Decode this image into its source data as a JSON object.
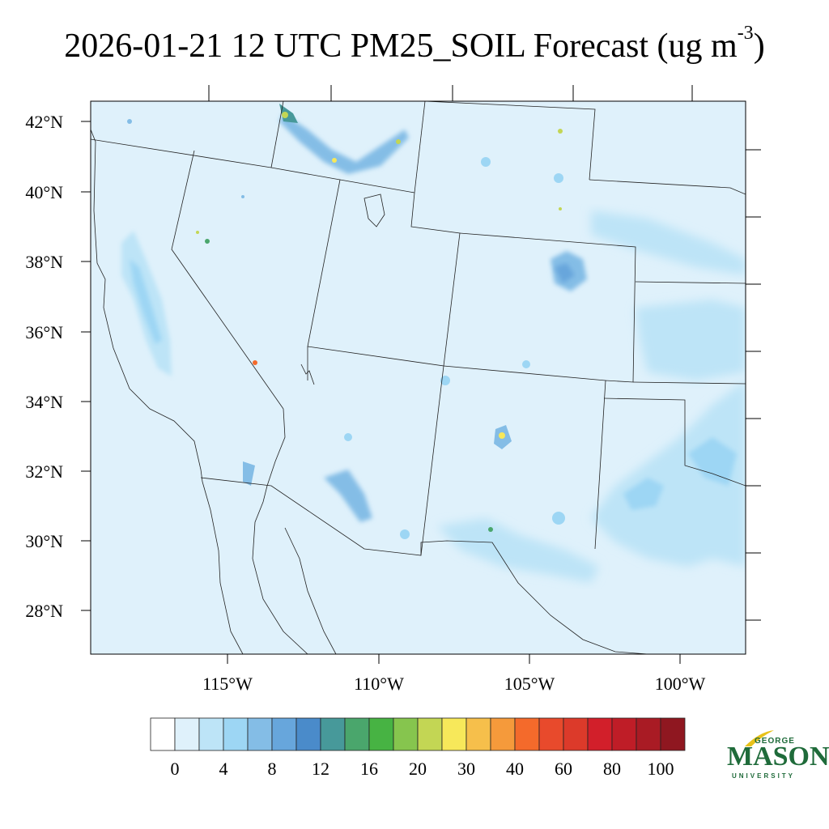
{
  "title": {
    "text": "2026-01-21 12 UTC PM25_SOIL Forecast (ug m",
    "sup": "-3",
    "close": ")"
  },
  "map": {
    "variable": "PM25_SOIL",
    "units": "ug m-3",
    "lat_labels": [
      "42°N",
      "40°N",
      "38°N",
      "36°N",
      "34°N",
      "32°N",
      "30°N",
      "28°N"
    ],
    "lon_labels": [
      "115°W",
      "110°W",
      "105°W",
      "100°W"
    ],
    "background_color": "#dff1fb"
  },
  "colorbar": {
    "labels": [
      "0",
      "4",
      "8",
      "12",
      "16",
      "20",
      "30",
      "40",
      "60",
      "80",
      "100"
    ],
    "colors": [
      "#ffffff",
      "#dff1fb",
      "#bde4f7",
      "#9dd6f4",
      "#84bde6",
      "#67a6dc",
      "#4a8bca",
      "#47999a",
      "#4aa66c",
      "#47b343",
      "#86c54e",
      "#c3d654",
      "#f7e85a",
      "#f6bf4b",
      "#f59a3b",
      "#f46a2b",
      "#e84a2c",
      "#dc3a2a",
      "#d21f2a",
      "#bf1d27",
      "#a91b24",
      "#8f1720"
    ]
  },
  "logo": {
    "line1": "GEORGE",
    "line2": "MASON",
    "line3": "UNIVERSITY",
    "color": "#1f6b3a",
    "accent": "#e8c21a"
  }
}
